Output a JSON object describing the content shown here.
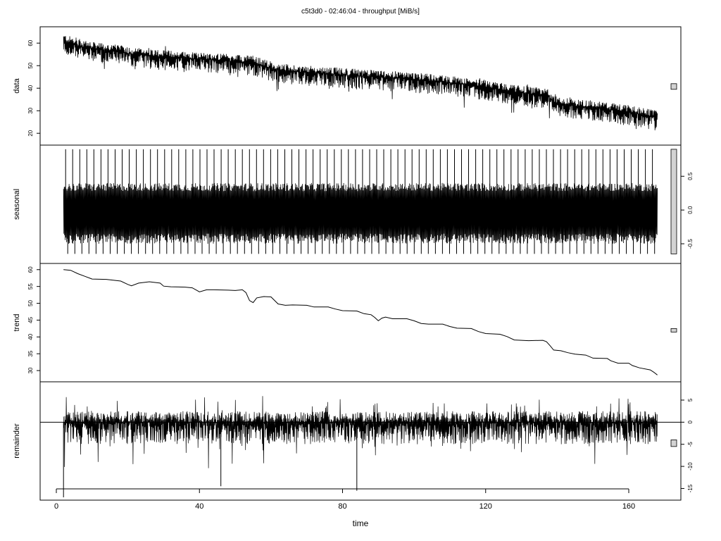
{
  "chart_data": {
    "type": "line",
    "title": "c5t3d0 - 02:46:04 - throughput [MiB/s]",
    "xlabel": "time",
    "xlim": [
      0,
      175
    ],
    "x_ticks": [
      0,
      40,
      80,
      120,
      160
    ],
    "x_range": [
      2,
      168
    ],
    "grid": false,
    "legend": "none",
    "panels": [
      {
        "name": "data",
        "ylabel": "data",
        "ylim": [
          16,
          66
        ],
        "ticks": [
          20,
          30,
          40,
          50,
          60
        ],
        "tick_side": "left",
        "range_bar": [
          39.5,
          42
        ],
        "style": "noisy",
        "trend_points": [
          [
            2,
            61
          ],
          [
            6,
            59
          ],
          [
            10,
            57.5
          ],
          [
            16,
            56.5
          ],
          [
            22,
            55
          ],
          [
            30,
            54
          ],
          [
            40,
            53
          ],
          [
            50,
            52
          ],
          [
            55,
            51.5
          ],
          [
            62,
            48
          ],
          [
            70,
            47
          ],
          [
            80,
            46
          ],
          [
            90,
            45
          ],
          [
            100,
            44
          ],
          [
            110,
            42.5
          ],
          [
            120,
            40.5
          ],
          [
            130,
            38
          ],
          [
            137,
            37
          ],
          [
            140,
            33
          ],
          [
            150,
            31.5
          ],
          [
            160,
            29.5
          ],
          [
            168,
            27
          ]
        ],
        "noise_up": 3,
        "noise_down": 6
      },
      {
        "name": "seasonal",
        "ylabel": "seasonal",
        "ylim": [
          -0.75,
          0.92
        ],
        "ticks": [
          -0.5,
          0.0,
          0.5
        ],
        "tick_labels": [
          "-0.5",
          "0.0",
          "0.5"
        ],
        "tick_side": "right",
        "range_bar": [
          -0.65,
          0.9
        ],
        "style": "seasonal",
        "cycles": 84,
        "amplitude_upper": 0.4,
        "amplitude_lower": -0.5,
        "spike_max": 0.9,
        "spike_min": -0.65
      },
      {
        "name": "trend",
        "ylabel": "trend",
        "ylim": [
          27.5,
          61
        ],
        "ticks": [
          30,
          35,
          40,
          45,
          50,
          55,
          60
        ],
        "tick_side": "left",
        "range_bar": [
          41.7,
          42.5
        ],
        "style": "smooth",
        "points": [
          [
            2,
            60
          ],
          [
            4,
            59.8
          ],
          [
            6,
            58.8
          ],
          [
            8,
            58
          ],
          [
            10,
            57.2
          ],
          [
            14,
            57.1
          ],
          [
            18,
            56.6
          ],
          [
            20,
            55.6
          ],
          [
            21,
            55.2
          ],
          [
            23,
            56
          ],
          [
            26,
            56.4
          ],
          [
            29,
            56
          ],
          [
            30,
            55.1
          ],
          [
            32,
            54.9
          ],
          [
            36,
            54.8
          ],
          [
            38,
            54.6
          ],
          [
            40,
            53.4
          ],
          [
            42,
            54
          ],
          [
            44,
            54
          ],
          [
            48,
            53.9
          ],
          [
            50,
            53.8
          ],
          [
            52,
            54
          ],
          [
            53,
            53.2
          ],
          [
            54,
            50.8
          ],
          [
            55,
            50.2
          ],
          [
            56,
            51.6
          ],
          [
            58,
            52
          ],
          [
            60,
            51.9
          ],
          [
            62,
            49.8
          ],
          [
            64,
            49.4
          ],
          [
            66,
            49.5
          ],
          [
            70,
            49.4
          ],
          [
            72,
            48.9
          ],
          [
            76,
            48.9
          ],
          [
            78,
            48.3
          ],
          [
            80,
            47.8
          ],
          [
            84,
            47.7
          ],
          [
            86,
            46.9
          ],
          [
            88,
            46.6
          ],
          [
            89,
            45.8
          ],
          [
            90,
            44.8
          ],
          [
            91,
            45.6
          ],
          [
            92,
            45.9
          ],
          [
            94,
            45.4
          ],
          [
            98,
            45.4
          ],
          [
            100,
            44.8
          ],
          [
            102,
            44
          ],
          [
            104,
            43.8
          ],
          [
            108,
            43.8
          ],
          [
            110,
            43.1
          ],
          [
            112,
            42.6
          ],
          [
            116,
            42.5
          ],
          [
            118,
            41.6
          ],
          [
            120,
            41
          ],
          [
            124,
            40.8
          ],
          [
            126,
            40.1
          ],
          [
            128,
            39.1
          ],
          [
            132,
            38.9
          ],
          [
            136,
            39
          ],
          [
            137,
            38.6
          ],
          [
            138,
            37.4
          ],
          [
            139,
            36.1
          ],
          [
            141,
            35.9
          ],
          [
            143,
            35.3
          ],
          [
            145,
            34.9
          ],
          [
            148,
            34.6
          ],
          [
            150,
            33.7
          ],
          [
            154,
            33.6
          ],
          [
            155,
            32.9
          ],
          [
            157,
            32.2
          ],
          [
            160,
            32.2
          ],
          [
            161,
            31.5
          ],
          [
            163,
            30.8
          ],
          [
            166,
            30.2
          ],
          [
            167,
            29.5
          ],
          [
            168,
            28.7
          ]
        ]
      },
      {
        "name": "remainder",
        "ylabel": "remainder",
        "ylim": [
          -17,
          8.5
        ],
        "ticks": [
          -15,
          -10,
          -5,
          0,
          5
        ],
        "tick_side": "right",
        "range_bar": [
          -5.5,
          -4
        ],
        "style": "remainder",
        "zero_line": true,
        "noise_up": 2.5,
        "noise_down": 5,
        "outliers": [
          [
            2,
            -17
          ],
          [
            46,
            -14.5
          ],
          [
            84,
            -15.5
          ]
        ]
      }
    ]
  }
}
